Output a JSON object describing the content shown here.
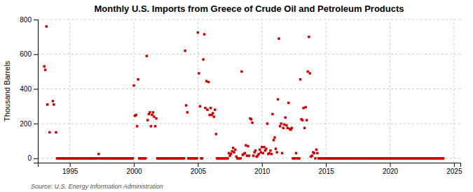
{
  "chart_data": {
    "type": "scatter",
    "title": "Monthly U.S. Imports from Greece of Crude Oil and Petroleum Products",
    "ylabel": "Thousand Barrels",
    "source": "Source: U.S. Energy Information Administration",
    "color": "#cc0000",
    "marker": "square",
    "grid": true,
    "xlim": [
      1992.5,
      2025.5
    ],
    "xticks": [
      1995,
      2000,
      2005,
      2010,
      2015,
      2020,
      2025
    ],
    "ylim": [
      -25,
      800
    ],
    "yticks": [
      0,
      200,
      400,
      600,
      800
    ],
    "x": [
      1993.0,
      1993.08,
      1993.17,
      1993.25,
      1993.42,
      1993.67,
      1993.75,
      1993.92,
      1994.0,
      1994.08,
      1994.17,
      1994.25,
      1994.33,
      1994.42,
      1994.5,
      1994.58,
      1994.67,
      1994.75,
      1994.83,
      1994.92,
      1995.0,
      1995.08,
      1995.17,
      1995.25,
      1995.33,
      1995.42,
      1995.5,
      1995.58,
      1995.67,
      1995.75,
      1995.83,
      1995.92,
      1996.0,
      1996.08,
      1996.17,
      1996.25,
      1996.33,
      1996.42,
      1996.5,
      1996.58,
      1996.67,
      1996.75,
      1996.83,
      1996.92,
      1997.0,
      1997.08,
      1997.17,
      1997.25,
      1997.33,
      1997.42,
      1997.5,
      1997.58,
      1997.67,
      1997.75,
      1997.83,
      1997.92,
      1998.0,
      1998.08,
      1998.17,
      1998.25,
      1998.33,
      1998.42,
      1998.5,
      1998.58,
      1998.67,
      1998.75,
      1998.83,
      1998.92,
      1999.0,
      1999.08,
      1999.17,
      1999.25,
      1999.33,
      1999.42,
      1999.5,
      1999.58,
      1999.67,
      1999.75,
      1999.83,
      1999.92,
      2000.0,
      2000.08,
      2000.17,
      2000.25,
      2000.33,
      2000.42,
      2000.5,
      2000.58,
      2000.67,
      2000.75,
      2000.83,
      2000.92,
      2001.0,
      2001.08,
      2001.17,
      2001.25,
      2001.33,
      2001.42,
      2001.5,
      2001.58,
      2001.67,
      2001.75,
      2001.83,
      2001.92,
      2002.0,
      2002.08,
      2002.17,
      2002.25,
      2002.33,
      2002.42,
      2002.5,
      2002.58,
      2002.67,
      2002.75,
      2002.83,
      2002.92,
      2003.0,
      2003.08,
      2003.17,
      2003.25,
      2003.33,
      2003.42,
      2003.5,
      2003.58,
      2003.67,
      2003.75,
      2003.83,
      2003.92,
      2004.0,
      2004.08,
      2004.17,
      2004.25,
      2004.33,
      2004.42,
      2004.5,
      2004.58,
      2004.67,
      2004.75,
      2004.83,
      2004.92,
      2005.0,
      2005.08,
      2005.17,
      2005.25,
      2005.33,
      2005.42,
      2005.5,
      2005.58,
      2005.67,
      2005.75,
      2005.83,
      2005.92,
      2006.0,
      2006.08,
      2006.17,
      2006.25,
      2006.33,
      2006.42,
      2006.5,
      2006.58,
      2006.67,
      2006.75,
      2006.83,
      2006.92,
      2007.0,
      2007.08,
      2007.17,
      2007.25,
      2007.33,
      2007.42,
      2007.5,
      2007.58,
      2007.67,
      2007.75,
      2007.83,
      2007.92,
      2008.0,
      2008.08,
      2008.17,
      2008.25,
      2008.33,
      2008.42,
      2008.5,
      2008.58,
      2008.67,
      2008.75,
      2008.83,
      2008.92,
      2009.0,
      2009.08,
      2009.17,
      2009.25,
      2009.33,
      2009.42,
      2009.5,
      2009.58,
      2009.67,
      2009.75,
      2009.83,
      2009.92,
      2010.0,
      2010.08,
      2010.17,
      2010.25,
      2010.33,
      2010.42,
      2010.5,
      2010.58,
      2010.67,
      2010.75,
      2010.83,
      2010.92,
      2011.0,
      2011.08,
      2011.17,
      2011.25,
      2011.33,
      2011.42,
      2011.5,
      2011.58,
      2011.67,
      2011.75,
      2011.83,
      2011.92,
      2012.0,
      2012.08,
      2012.17,
      2012.25,
      2012.33,
      2012.42,
      2012.5,
      2012.58,
      2012.67,
      2012.75,
      2012.83,
      2012.92,
      2013.0,
      2013.08,
      2013.17,
      2013.25,
      2013.33,
      2013.42,
      2013.5,
      2013.58,
      2013.67,
      2013.75,
      2013.83,
      2013.92,
      2014.0,
      2014.08,
      2014.17,
      2014.25,
      2014.33,
      2014.42,
      2014.5,
      2014.58,
      2014.67,
      2014.75,
      2014.83,
      2014.92,
      2015.0,
      2015.08,
      2015.17,
      2015.25,
      2015.33,
      2015.42,
      2015.5,
      2015.58,
      2015.67,
      2015.75,
      2015.83,
      2015.92,
      2016.0,
      2016.08,
      2016.17,
      2016.25,
      2016.33,
      2016.42,
      2016.5,
      2016.58,
      2016.67,
      2016.75,
      2016.83,
      2016.92,
      2017.0,
      2017.08,
      2017.17,
      2017.25,
      2017.33,
      2017.42,
      2017.5,
      2017.58,
      2017.67,
      2017.75,
      2017.83,
      2017.92,
      2018.0,
      2018.08,
      2018.17,
      2018.25,
      2018.33,
      2018.42,
      2018.5,
      2018.58,
      2018.67,
      2018.75,
      2018.83,
      2018.92,
      2019.0,
      2019.08,
      2019.17,
      2019.25,
      2019.33,
      2019.42,
      2019.5,
      2019.58,
      2019.67,
      2019.75,
      2019.83,
      2019.92,
      2020.0,
      2020.08,
      2020.17,
      2020.25,
      2020.33,
      2020.42,
      2020.5,
      2020.58,
      2020.67,
      2020.75,
      2020.83,
      2020.92,
      2021.0,
      2021.08,
      2021.17,
      2021.25,
      2021.33,
      2021.42,
      2021.5,
      2021.58,
      2021.67,
      2021.75,
      2021.83,
      2021.92,
      2022.0,
      2022.08,
      2022.17,
      2022.25,
      2022.33,
      2022.42,
      2022.5,
      2022.58,
      2022.67,
      2022.75,
      2022.83,
      2022.92,
      2023.0,
      2023.08,
      2023.17,
      2023.25,
      2023.33,
      2023.42,
      2023.5,
      2023.58,
      2023.67,
      2023.75,
      2023.83,
      2023.92,
      2024.0,
      2024.08,
      2024.17
    ],
    "values": [
      530,
      510,
      760,
      310,
      150,
      330,
      310,
      150,
      0,
      0,
      0,
      0,
      0,
      0,
      0,
      0,
      0,
      0,
      0,
      0,
      0,
      0,
      0,
      0,
      0,
      0,
      0,
      0,
      0,
      0,
      0,
      0,
      0,
      0,
      0,
      0,
      0,
      0,
      0,
      0,
      0,
      0,
      0,
      0,
      0,
      0,
      0,
      25,
      0,
      0,
      0,
      0,
      0,
      0,
      0,
      0,
      0,
      0,
      0,
      0,
      0,
      0,
      0,
      0,
      0,
      0,
      0,
      0,
      0,
      0,
      0,
      0,
      0,
      0,
      0,
      0,
      0,
      0,
      0,
      0,
      420,
      245,
      250,
      185,
      455,
      0,
      0,
      0,
      0,
      0,
      0,
      0,
      590,
      220,
      255,
      265,
      185,
      250,
      265,
      240,
      185,
      230,
      0,
      0,
      0,
      0,
      0,
      0,
      0,
      0,
      0,
      0,
      0,
      0,
      0,
      0,
      0,
      0,
      0,
      0,
      0,
      0,
      0,
      0,
      0,
      0,
      0,
      0,
      620,
      305,
      265,
      0,
      0,
      0,
      0,
      0,
      0,
      0,
      0,
      0,
      725,
      490,
      300,
      0,
      0,
      570,
      715,
      290,
      445,
      280,
      440,
      250,
      290,
      250,
      260,
      240,
      280,
      140,
      0,
      0,
      0,
      0,
      0,
      0,
      0,
      0,
      0,
      0,
      0,
      30,
      15,
      25,
      40,
      60,
      35,
      50,
      10,
      0,
      0,
      0,
      0,
      500,
      20,
      25,
      30,
      75,
      15,
      70,
      15,
      230,
      225,
      205,
      15,
      35,
      45,
      10,
      15,
      25,
      50,
      35,
      65,
      30,
      65,
      45,
      55,
      200,
      25,
      30,
      45,
      25,
      255,
      105,
      120,
      55,
      35,
      340,
      690,
      185,
      200,
      30,
      175,
      195,
      235,
      190,
      175,
      320,
      170,
      165,
      175,
      0,
      0,
      0,
      30,
      0,
      0,
      0,
      455,
      225,
      220,
      290,
      175,
      295,
      220,
      500,
      700,
      490,
      10,
      15,
      35,
      30,
      0,
      50,
      30,
      0,
      0,
      0,
      0,
      0,
      0,
      0,
      0,
      0,
      0,
      0,
      0,
      0,
      0,
      0,
      0,
      0,
      0,
      0,
      0,
      0,
      0,
      0,
      0,
      0,
      0,
      0,
      0,
      0,
      0,
      0,
      0,
      0,
      0,
      0,
      0,
      0,
      0,
      0,
      0,
      0,
      0,
      0,
      0,
      0,
      0,
      0,
      0,
      0,
      0,
      0,
      0,
      0,
      0,
      0,
      0,
      0,
      0,
      0,
      0,
      0,
      0,
      0,
      0,
      0,
      0,
      0,
      0,
      0,
      0,
      0,
      0,
      0,
      0,
      0,
      0,
      0,
      0,
      0,
      0,
      0,
      0,
      0,
      0,
      0,
      0,
      0,
      0,
      0,
      0,
      0,
      0,
      0,
      0,
      0,
      0,
      0,
      0,
      0,
      0,
      0,
      0,
      0,
      0,
      0,
      0,
      0,
      0,
      0,
      0,
      0,
      0,
      0,
      0,
      0,
      0,
      0,
      0
    ]
  }
}
